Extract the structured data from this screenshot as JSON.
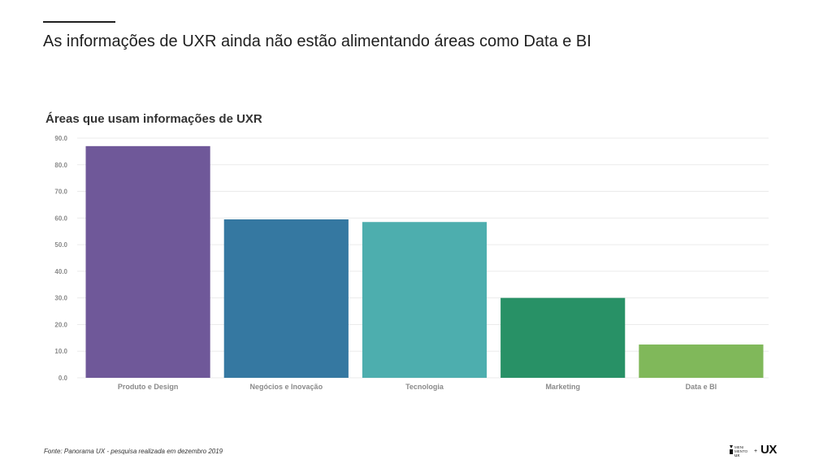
{
  "headline": "As informações de UXR ainda não estão alimentando áreas como Data e BI",
  "chart_data": {
    "type": "bar",
    "title": "Áreas que usam informações de UXR",
    "xlabel": "",
    "ylabel": "",
    "ylim": [
      0,
      90
    ],
    "yticks": [
      "0.0",
      "10.0",
      "20.0",
      "30.0",
      "40.0",
      "50.0",
      "60.0",
      "70.0",
      "80.0",
      "90.0"
    ],
    "grid": true,
    "categories": [
      "Produto e Design",
      "Negócios e Inovação",
      "Tecnologia",
      "Marketing",
      "Data e BI"
    ],
    "values": [
      87,
      59.5,
      58.5,
      30,
      12.5
    ],
    "colors": [
      "#6f5899",
      "#3578a1",
      "#4daeae",
      "#289166",
      "#80b85a"
    ]
  },
  "footnote": "Fonte: Panorama UX - pesquisa realizada em dezembro 2019",
  "logo": {
    "small_text": [
      "MENI",
      "MENTO",
      "UX"
    ],
    "plus": "+",
    "brand": "UX"
  }
}
